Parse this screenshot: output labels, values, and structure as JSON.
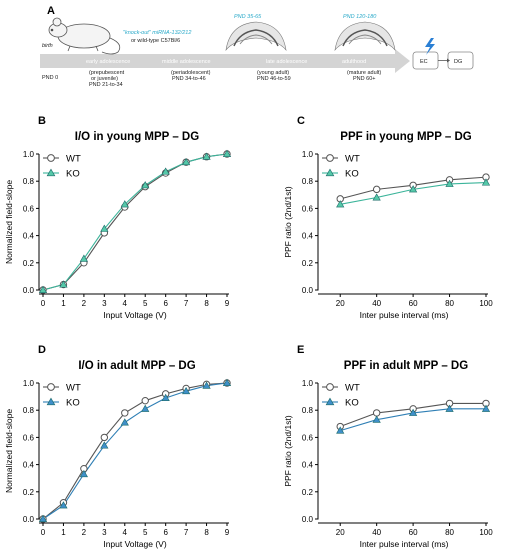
{
  "figure": {
    "panel_A": {
      "letter": "A",
      "birth_label": "birth",
      "pnd0_label": "PND 0",
      "ko_line1": "\"knock-out\" miRNA-132/212",
      "ko_line2": "or wild-type C57Bl/6",
      "stages": [
        {
          "name": "early adolescence",
          "desc1": "(prepubescent",
          "desc2": "or juvenile)",
          "range": "PND 21-to-34"
        },
        {
          "name": "middle adolescence",
          "desc1": "(periadolescent)",
          "desc2": "",
          "range": "PND 34-to-46"
        },
        {
          "name": "late adolescence",
          "desc1": "(young adult)",
          "desc2": "",
          "range": "PND 46-to-59"
        },
        {
          "name": "adulthood",
          "desc1": "(mature adult)",
          "desc2": "",
          "range": "PND 60+"
        }
      ],
      "pnd_young": "PND 35-65",
      "pnd_adult": "PND 120-180",
      "ec_label": "EC",
      "dg_label": "DG",
      "colors": {
        "arrow": "#d4d4d4",
        "cyan": "#29a9c9",
        "bolt": "#2a7fd4"
      }
    }
  },
  "chart_data": [
    {
      "panel": "B",
      "type": "line",
      "title": "I/O in young MPP – DG",
      "xlabel": "Input Voltage (V)",
      "ylabel": "Normalized field-slope",
      "x": [
        0,
        1,
        2,
        3,
        4,
        5,
        6,
        7,
        8,
        9
      ],
      "xticks": [
        "0",
        "1",
        "2",
        "3",
        "4",
        "5",
        "6",
        "7",
        "8",
        "9"
      ],
      "xlim": [
        0,
        9
      ],
      "ylim": [
        0,
        1.0
      ],
      "yticks": [
        "0.0",
        "0.2",
        "0.4",
        "0.6",
        "0.8",
        "1.0"
      ],
      "legend_position": "top-left",
      "series": [
        {
          "name": "WT",
          "marker": "circle",
          "color": "#555555",
          "fill": "#ffffff",
          "values": [
            0.0,
            0.04,
            0.2,
            0.42,
            0.61,
            0.76,
            0.86,
            0.94,
            0.98,
            1.0
          ]
        },
        {
          "name": "KO",
          "marker": "triangle",
          "color": "#3bb49a",
          "fill": "#55c8a8",
          "values": [
            0.0,
            0.04,
            0.23,
            0.45,
            0.63,
            0.77,
            0.87,
            0.94,
            0.98,
            1.0
          ]
        }
      ]
    },
    {
      "panel": "C",
      "type": "line",
      "title": "PPF in young MPP – DG",
      "xlabel": "Inter pulse interval (ms)",
      "ylabel": "PPF ratio (2nd/1st)",
      "x": [
        20,
        40,
        60,
        80,
        100
      ],
      "xticks": [
        "20",
        "40",
        "60",
        "80",
        "100"
      ],
      "xlim": [
        10,
        100
      ],
      "ylim": [
        0,
        1.0
      ],
      "yticks": [
        "0.0",
        "0.2",
        "0.4",
        "0.6",
        "0.8",
        "1.0"
      ],
      "legend_position": "top-left",
      "series": [
        {
          "name": "WT",
          "marker": "circle",
          "color": "#555555",
          "fill": "#ffffff",
          "values": [
            0.67,
            0.74,
            0.77,
            0.81,
            0.83
          ]
        },
        {
          "name": "KO",
          "marker": "triangle",
          "color": "#3bb49a",
          "fill": "#55c8a8",
          "values": [
            0.63,
            0.68,
            0.74,
            0.78,
            0.79
          ]
        }
      ]
    },
    {
      "panel": "D",
      "type": "line",
      "title": "I/O in adult MPP – DG",
      "xlabel": "Input Voltage (V)",
      "ylabel": "Normalized field-slope",
      "x": [
        0,
        1,
        2,
        3,
        4,
        5,
        6,
        7,
        8,
        9
      ],
      "xticks": [
        "0",
        "1",
        "2",
        "3",
        "4",
        "5",
        "6",
        "7",
        "8",
        "9"
      ],
      "xlim": [
        0,
        9
      ],
      "ylim": [
        0,
        1.0
      ],
      "yticks": [
        "0.0",
        "0.2",
        "0.4",
        "0.6",
        "0.8",
        "1.0"
      ],
      "legend_position": "top-left",
      "series": [
        {
          "name": "WT",
          "marker": "circle",
          "color": "#555555",
          "fill": "#ffffff",
          "values": [
            0.0,
            0.12,
            0.37,
            0.6,
            0.78,
            0.87,
            0.92,
            0.96,
            0.99,
            1.0
          ]
        },
        {
          "name": "KO",
          "marker": "triangle",
          "color": "#2f7fb5",
          "fill": "#3f8fc9",
          "values": [
            0.0,
            0.1,
            0.33,
            0.54,
            0.71,
            0.81,
            0.89,
            0.94,
            0.98,
            1.0
          ]
        }
      ]
    },
    {
      "panel": "E",
      "type": "line",
      "title": "PPF in adult MPP – DG",
      "xlabel": "Inter pulse interval (ms)",
      "ylabel": "PPF ratio (2nd/1st)",
      "x": [
        20,
        40,
        60,
        80,
        100
      ],
      "xticks": [
        "20",
        "40",
        "60",
        "80",
        "100"
      ],
      "xlim": [
        10,
        100
      ],
      "ylim": [
        0,
        1.0
      ],
      "yticks": [
        "0.0",
        "0.2",
        "0.4",
        "0.6",
        "0.8",
        "1.0"
      ],
      "legend_position": "top-left",
      "series": [
        {
          "name": "WT",
          "marker": "circle",
          "color": "#555555",
          "fill": "#ffffff",
          "values": [
            0.68,
            0.78,
            0.81,
            0.85,
            0.85
          ]
        },
        {
          "name": "KO",
          "marker": "triangle",
          "color": "#2f7fb5",
          "fill": "#3f8fc9",
          "values": [
            0.65,
            0.73,
            0.78,
            0.81,
            0.81
          ]
        }
      ]
    }
  ]
}
